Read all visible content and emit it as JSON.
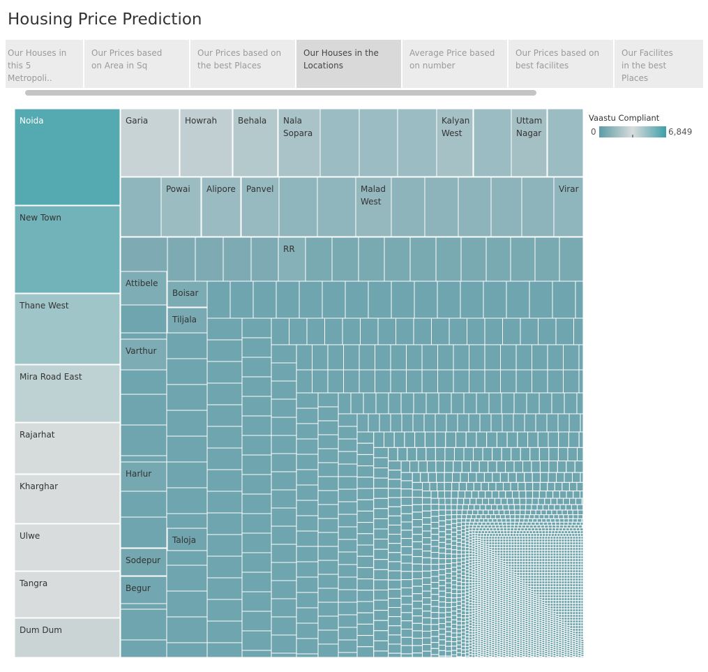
{
  "title": "Housing Price Prediction",
  "tabs": [
    "Our Houses in this 5 Metropoli..",
    "Our Prices based  on Area in Sq",
    "Our Prices based on the best Places",
    "Our Houses in the Locations",
    "Average Price based on number",
    "Our Prices based on best facilites",
    "Our Facilites in the best Places"
  ],
  "active_tab": 3,
  "legend": {
    "title": "Vaastu Compliant",
    "min": 0,
    "max": {
      "value": 6849,
      "label": "6,849"
    },
    "colors": [
      "#5e9ca7",
      "#d9dcdc",
      "#3c9fa8"
    ]
  },
  "treemap": {
    "cells": [
      {
        "label": "Noida",
        "value": 6300
      },
      {
        "label": "New Town",
        "value": 5700
      },
      {
        "label": "Thane West",
        "value": 4700
      },
      {
        "label": "Mira Road East",
        "value": 4000
      },
      {
        "label": "Rajarhat",
        "value": 3500
      },
      {
        "label": "Kharghar",
        "value": 3450
      },
      {
        "label": "Ulwe",
        "value": 3400
      },
      {
        "label": "Tangra",
        "value": 3400
      },
      {
        "label": "Dum Dum",
        "value": 3000
      },
      {
        "label": "Garia",
        "value": 2950
      },
      {
        "label": "Howrah",
        "value": 2750
      },
      {
        "label": "Behala",
        "value": 2400
      },
      {
        "label": "Nala Sopara",
        "value": 2100
      },
      {
        "label": "Kalyan West",
        "value": 2000
      },
      {
        "label": "Uttam Nagar",
        "value": 1950
      },
      {
        "label": "Powai",
        "value": 1700
      },
      {
        "label": "Alipore",
        "value": 1650
      },
      {
        "label": "Panvel",
        "value": 1600
      },
      {
        "label": "Malad West",
        "value": 1500
      },
      {
        "label": "Virar",
        "value": 1400
      },
      {
        "label": "RR",
        "value": 1100
      },
      {
        "label": "Attibele",
        "value": 900
      },
      {
        "label": "Boisar",
        "value": 800
      },
      {
        "label": "Tiljala",
        "value": 750
      },
      {
        "label": "Varthur",
        "value": 850
      },
      {
        "label": "Harlur",
        "value": 650
      },
      {
        "label": "Taloja",
        "value": 500
      },
      {
        "label": "Sodepur",
        "value": 600
      },
      {
        "label": "Begur",
        "value": 550
      }
    ]
  }
}
